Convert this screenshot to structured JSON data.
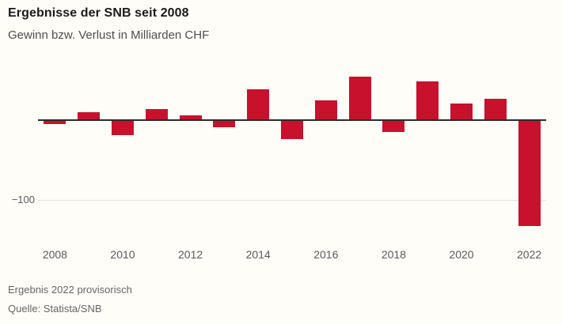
{
  "header": {
    "title": "Ergebnisse der SNB seit 2008",
    "subtitle": "Gewinn bzw. Verlust in Milliarden CHF"
  },
  "chart_data": {
    "type": "bar",
    "title": "Ergebnisse der SNB seit 2008",
    "subtitle": "Gewinn bzw. Verlust in Milliarden CHF",
    "unit": "Milliarden CHF",
    "categories": [
      "2008",
      "2009",
      "2010",
      "2011",
      "2012",
      "2013",
      "2014",
      "2015",
      "2016",
      "2017",
      "2018",
      "2019",
      "2020",
      "2021",
      "2022"
    ],
    "values": [
      -4.7,
      10.0,
      -19.2,
      13.5,
      6.0,
      -9.1,
      38.3,
      -23.3,
      24.5,
      54.4,
      -14.9,
      48.9,
      20.9,
      26.3,
      -132.5
    ],
    "xlabel": "",
    "ylabel": "",
    "ylim": [
      -145,
      60
    ],
    "x_tick_labels": [
      "2008",
      "2010",
      "2012",
      "2014",
      "2016",
      "2018",
      "2020",
      "2022"
    ],
    "y_ticks": [
      {
        "value": -100,
        "label": "−100"
      }
    ],
    "grid": "single horizontal gridline at -100",
    "legend": "none",
    "bar_color": "#C8112D"
  },
  "footer": {
    "note": "Ergebnis 2022 provisorisch",
    "source": "Quelle: Statista/SNB"
  },
  "colors": {
    "background": "#FFFDF8",
    "bar": "#C8112D",
    "axis_line": "#2B2B2B",
    "gridline": "#E7E4DE",
    "title_text": "#1A1A1A",
    "subtitle_text": "#4D4D4D",
    "tick_text": "#595959",
    "footer_text": "#666666"
  }
}
